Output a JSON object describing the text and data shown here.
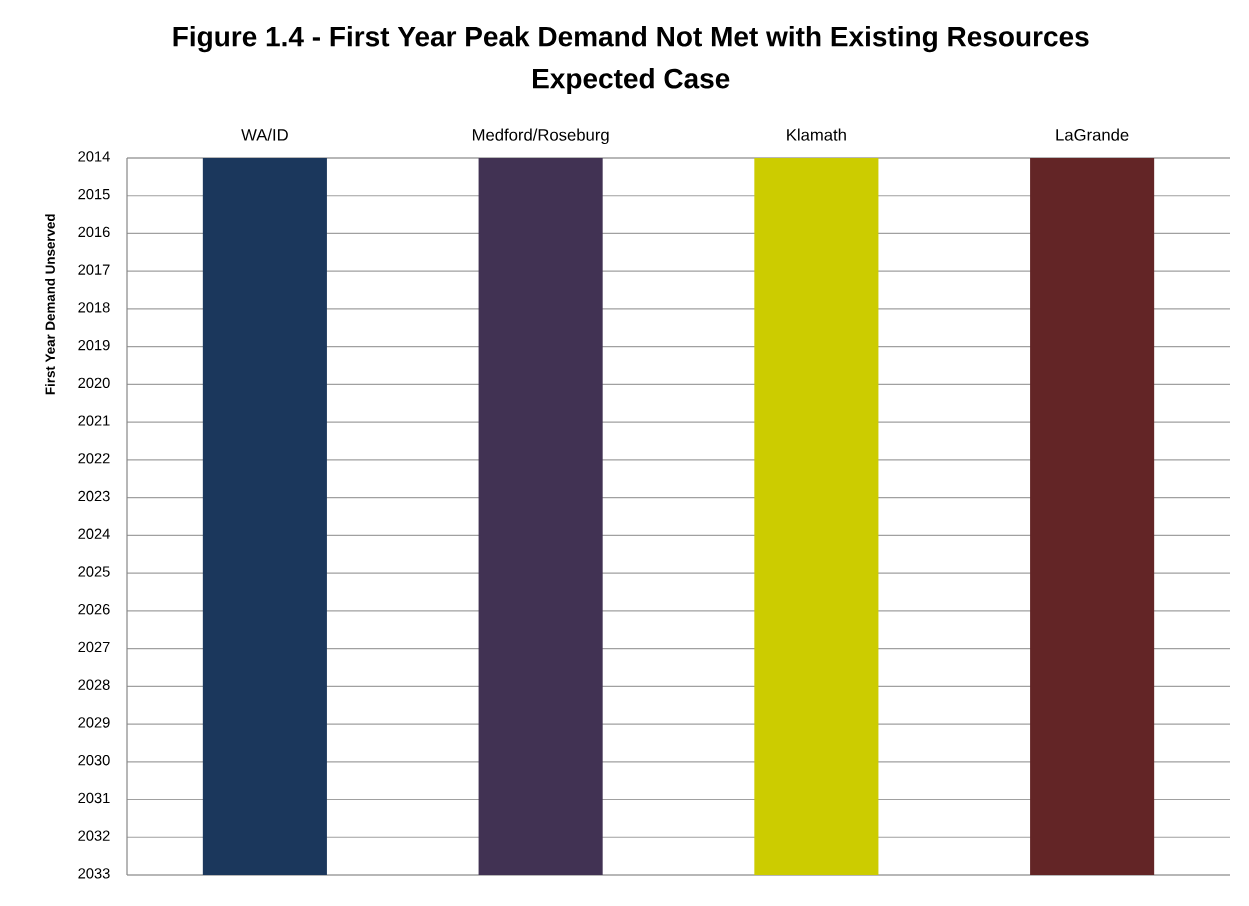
{
  "chart_data": {
    "type": "bar",
    "title": "Figure 1.4 - First Year Peak Demand Not Met with Existing Resources",
    "subtitle": "Expected Case",
    "ylabel": "First Year Demand Unserved",
    "categories": [
      "WA/ID",
      "Medford/Roseburg",
      "Klamath",
      "LaGrande"
    ],
    "values": [
      2033,
      2033,
      2033,
      2033
    ],
    "colors": [
      "#1b375c",
      "#413253",
      "#cccc00",
      "#632526"
    ],
    "ylim": [
      2033,
      2014
    ],
    "yticks": [
      2014,
      2015,
      2016,
      2017,
      2018,
      2019,
      2020,
      2021,
      2022,
      2023,
      2024,
      2025,
      2026,
      2027,
      2028,
      2029,
      2030,
      2031,
      2032,
      2033
    ],
    "grid": "y"
  }
}
